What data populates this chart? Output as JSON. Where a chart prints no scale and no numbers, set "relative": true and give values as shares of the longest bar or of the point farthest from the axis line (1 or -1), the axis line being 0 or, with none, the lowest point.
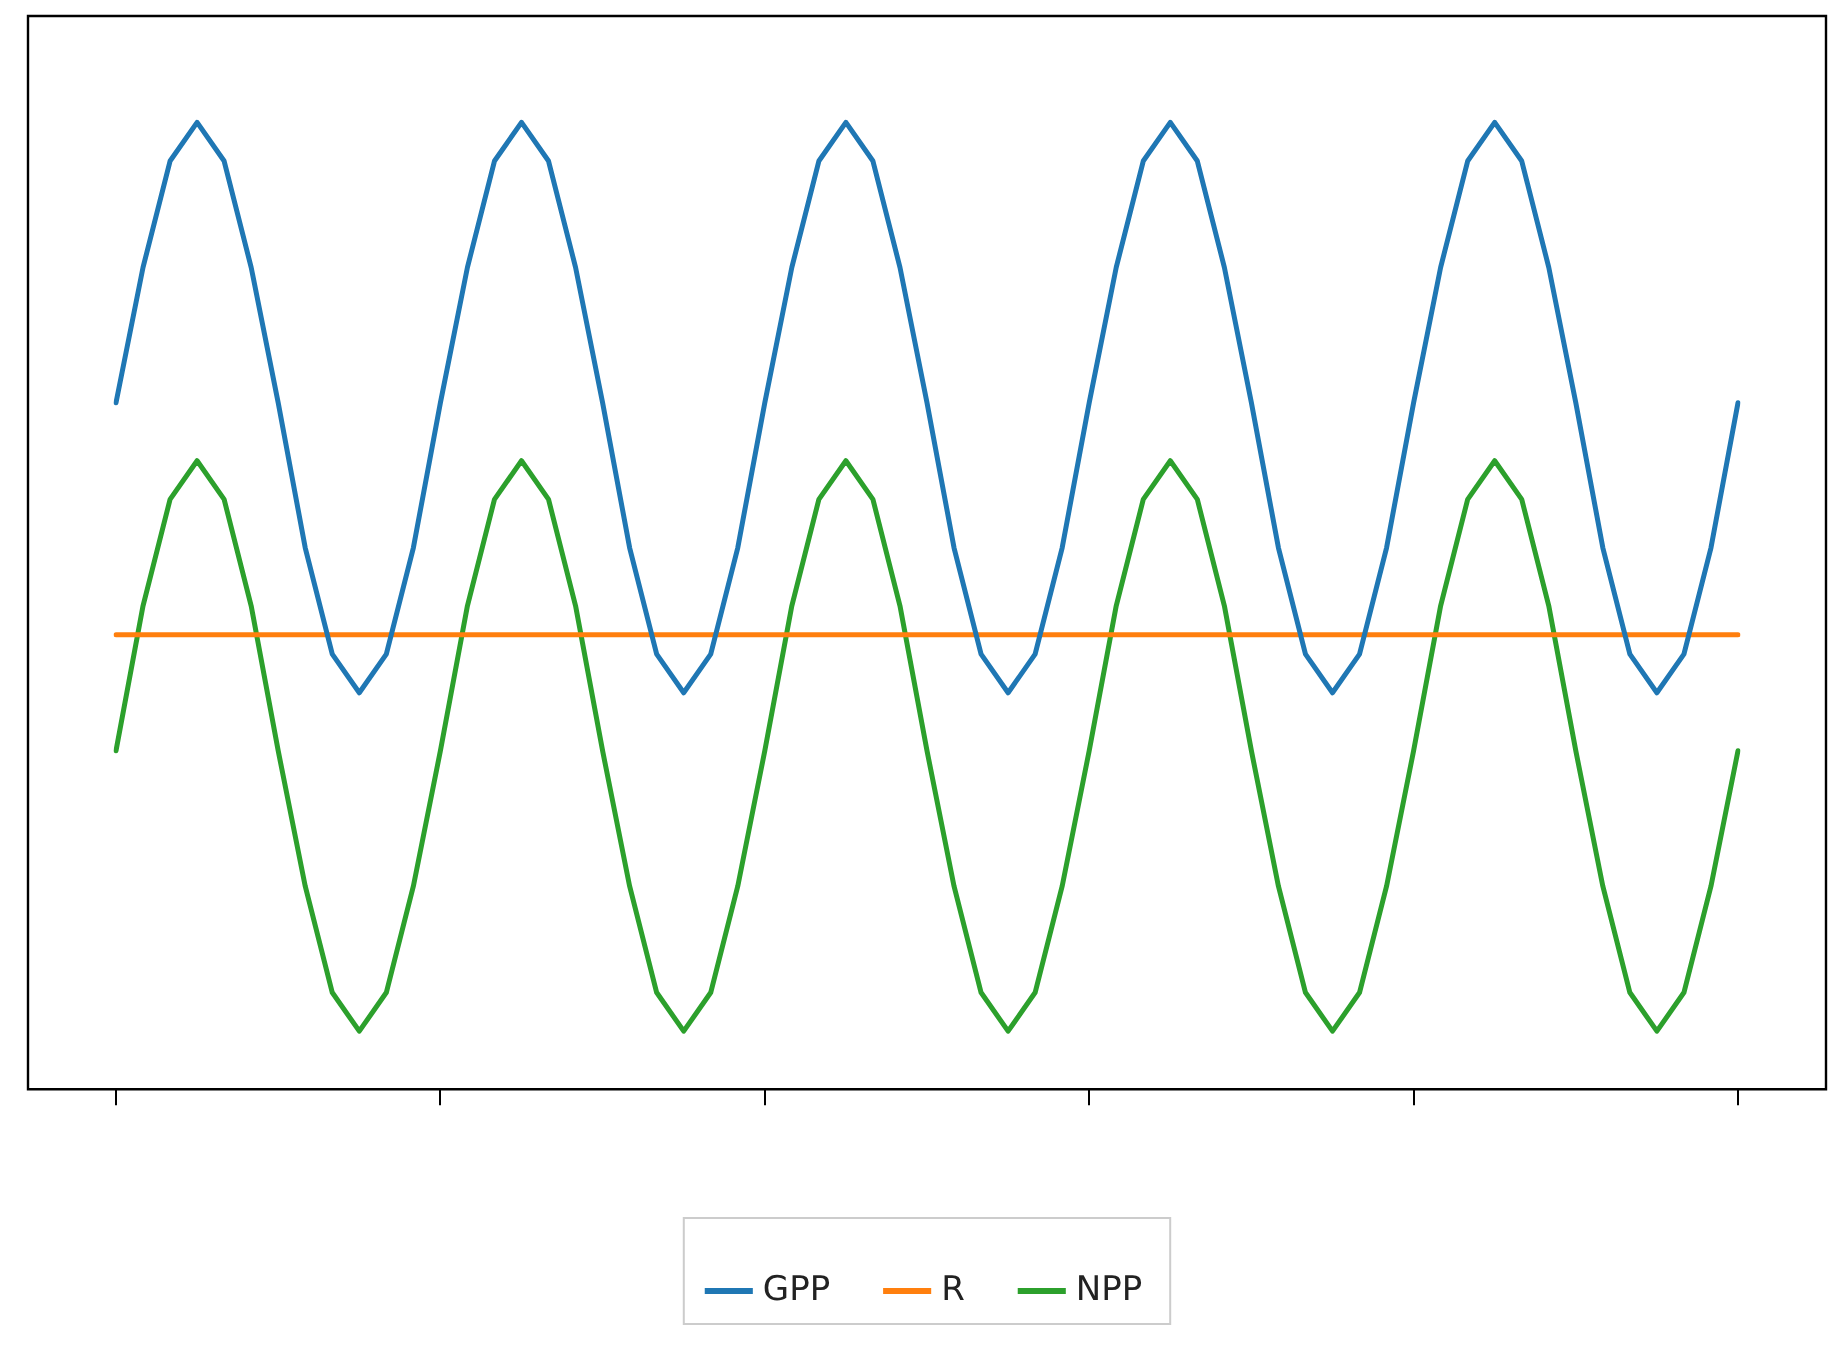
{
  "chart_data": {
    "type": "line",
    "relative": true,
    "grid": false,
    "legend": "bottom",
    "marker": "none",
    "line_style": "solid",
    "categories": [
      null,
      null,
      null,
      null,
      null,
      null,
      null,
      null,
      null,
      null,
      null,
      null,
      null,
      null,
      null,
      null,
      null,
      null,
      null,
      null,
      null,
      null,
      null,
      null,
      null,
      null,
      null,
      null,
      null,
      null,
      null,
      null,
      null,
      null,
      null,
      null,
      null,
      null,
      null,
      null,
      null,
      null,
      null,
      null,
      null,
      null,
      null,
      null,
      null,
      null,
      null,
      null,
      null,
      null,
      null,
      null,
      null,
      null,
      null,
      null,
      null
    ],
    "series": [
      {
        "name": "GPP",
        "color": "#1f77b4",
        "values": [
          0.71,
          0.85,
          0.96,
          1,
          0.96,
          0.85,
          0.71,
          0.56,
          0.45,
          0.41,
          0.45,
          0.56,
          0.71,
          0.85,
          0.96,
          1,
          0.96,
          0.85,
          0.71,
          0.56,
          0.45,
          0.41,
          0.45,
          0.56,
          0.71,
          0.85,
          0.96,
          1,
          0.96,
          0.85,
          0.71,
          0.56,
          0.45,
          0.41,
          0.45,
          0.56,
          0.71,
          0.85,
          0.96,
          1,
          0.96,
          0.85,
          0.71,
          0.56,
          0.45,
          0.41,
          0.45,
          0.56,
          0.71,
          0.85,
          0.96,
          1,
          0.96,
          0.85,
          0.71,
          0.56,
          0.45,
          0.41,
          0.45,
          0.56,
          0.71
        ]
      },
      {
        "name": "R",
        "color": "#ff7f0e",
        "values": [
          0.47,
          0.47,
          0.47,
          0.47,
          0.47,
          0.47,
          0.47,
          0.47,
          0.47,
          0.47,
          0.47,
          0.47,
          0.47,
          0.47,
          0.47,
          0.47,
          0.47,
          0.47,
          0.47,
          0.47,
          0.47,
          0.47,
          0.47,
          0.47,
          0.47,
          0.47,
          0.47,
          0.47,
          0.47,
          0.47,
          0.47,
          0.47,
          0.47,
          0.47,
          0.47,
          0.47,
          0.47,
          0.47,
          0.47,
          0.47,
          0.47,
          0.47,
          0.47,
          0.47,
          0.47,
          0.47,
          0.47,
          0.47,
          0.47,
          0.47,
          0.47,
          0.47,
          0.47,
          0.47,
          0.47,
          0.47,
          0.47,
          0.47,
          0.47,
          0.47,
          0.47
        ]
      },
      {
        "name": "NPP",
        "color": "#2ca02c",
        "values": [
          0.35,
          0.5,
          0.61,
          0.65,
          0.61,
          0.5,
          0.35,
          0.21,
          0.1,
          0.06,
          0.1,
          0.21,
          0.35,
          0.5,
          0.61,
          0.65,
          0.61,
          0.5,
          0.35,
          0.21,
          0.1,
          0.06,
          0.1,
          0.21,
          0.35,
          0.5,
          0.61,
          0.65,
          0.61,
          0.5,
          0.35,
          0.21,
          0.1,
          0.06,
          0.1,
          0.21,
          0.35,
          0.5,
          0.61,
          0.65,
          0.61,
          0.5,
          0.35,
          0.21,
          0.1,
          0.06,
          0.1,
          0.21,
          0.35,
          0.5,
          0.61,
          0.65,
          0.61,
          0.5,
          0.35,
          0.21,
          0.1,
          0.06,
          0.1,
          0.21,
          0.35
        ]
      }
    ]
  }
}
